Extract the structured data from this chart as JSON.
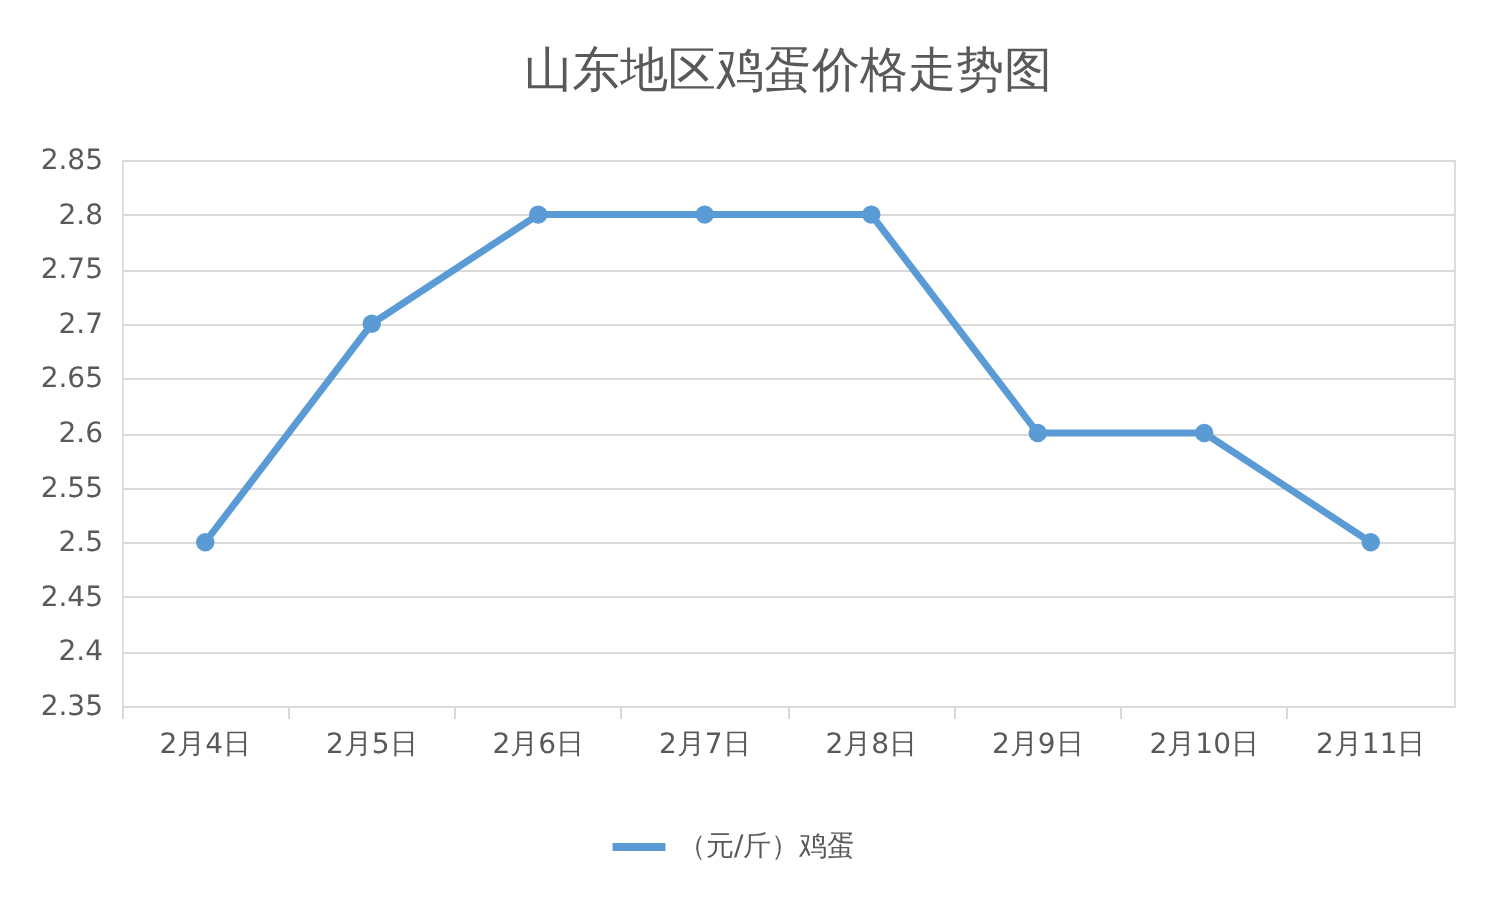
{
  "chart_data": {
    "type": "line",
    "title": "山东地区鸡蛋价格走势图",
    "categories": [
      "2月4日",
      "2月5日",
      "2月6日",
      "2月7日",
      "2月8日",
      "2月9日",
      "2月10日",
      "2月11日"
    ],
    "series": [
      {
        "name": "（元/斤）鸡蛋",
        "color": "#5b9bd5",
        "values": [
          2.5,
          2.7,
          2.8,
          2.8,
          2.8,
          2.6,
          2.6,
          2.5
        ]
      }
    ],
    "ylim": [
      2.35,
      2.85
    ],
    "yticks": [
      2.35,
      2.4,
      2.45,
      2.5,
      2.55,
      2.6,
      2.65,
      2.7,
      2.75,
      2.8,
      2.85
    ],
    "grid": "y",
    "legend": "bottom",
    "marker": "circle",
    "line_style": "solid"
  }
}
